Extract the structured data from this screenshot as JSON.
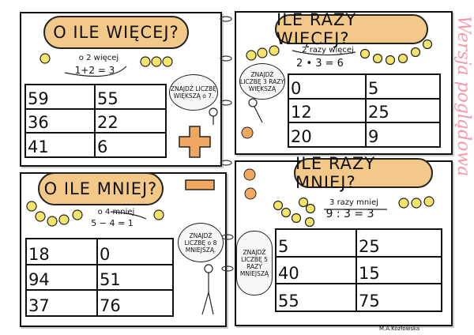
{
  "panels": [
    {
      "title": "O ILE WIĘCEJ?",
      "hint": "o 2 więcej",
      "equation": "1+2 = 3",
      "bubble": "ZNAJDŹ LICZBĘ WIĘKSZĄ o 7.",
      "rows": [
        [
          "59",
          "55"
        ],
        [
          "36",
          "22"
        ],
        [
          "41",
          "6"
        ]
      ],
      "sign": "plus"
    },
    {
      "title": "ILE RAZY WIĘCEJ?",
      "hint": "2 razy więcej",
      "equation": "2 • 3 = 6",
      "bubble": "ZNAJDŹ LICZBĘ 3 RAZY WIĘKSZĄ",
      "rows": [
        [
          "0",
          "5"
        ],
        [
          "12",
          "25"
        ],
        [
          "20",
          "9"
        ]
      ],
      "sign": "multiply"
    },
    {
      "title": "O ILE MNIEJ?",
      "hint": "o 4 mniej",
      "equation": "5 − 4 = 1",
      "bubble": "ZNAJDŹ LICZBĘ o 8 MNIEJSZĄ.",
      "rows": [
        [
          "18",
          "0"
        ],
        [
          "94",
          "51"
        ],
        [
          "37",
          "76"
        ]
      ],
      "sign": "minus"
    },
    {
      "title": "ILE RAZY MNIEJ?",
      "hint": "3 razy mniej",
      "equation": "9 : 3 = 3",
      "bubble": "ZNAJDŹ LICZBĘ 5 RAZY MNIEJSZĄ",
      "rows": [
        [
          "5",
          "25"
        ],
        [
          "40",
          "15"
        ],
        [
          "55",
          "75"
        ]
      ],
      "sign": "divide"
    }
  ],
  "watermark": "Wersja poglądowa",
  "signature": "M.A.Kozłowska",
  "colors": {
    "cloud": "#f3c98a",
    "sign": "#f0a860",
    "bead": "#f5e36a",
    "watermark": "#f06e82"
  }
}
